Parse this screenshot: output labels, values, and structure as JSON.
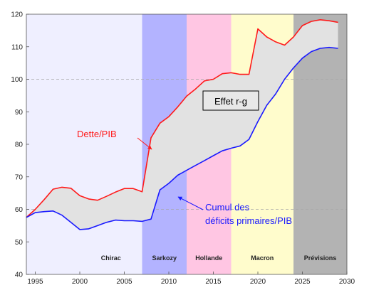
{
  "chart_data": {
    "type": "line",
    "xlim": [
      1994,
      2030
    ],
    "ylim": [
      40,
      120
    ],
    "xticks": [
      1995,
      2000,
      2005,
      2010,
      2015,
      2020,
      2025,
      2030
    ],
    "yticks": [
      40,
      50,
      60,
      70,
      80,
      90,
      100,
      110,
      120
    ],
    "reference_lines": [
      60,
      100
    ],
    "periods": [
      {
        "label": "Chirac",
        "start": 1994,
        "end": 2007,
        "color": "#efefff"
      },
      {
        "label": "Sarkozy",
        "start": 2007,
        "end": 2012,
        "color": "#b3b3ff"
      },
      {
        "label": "Hollande",
        "start": 2012,
        "end": 2017,
        "color": "#ffc6e3"
      },
      {
        "label": "Macron",
        "start": 2017,
        "end": 2024,
        "color": "#fffccc"
      },
      {
        "label": "Prévisions",
        "start": 2024,
        "end": 2030,
        "color": "#b3b3b3"
      }
    ],
    "series": [
      {
        "name": "Dette/PIB",
        "color": "#ff1a1a",
        "x": [
          1994,
          1995,
          1996,
          1997,
          1998,
          1999,
          2000,
          2001,
          2002,
          2003,
          2004,
          2005,
          2006,
          2007,
          2008,
          2009,
          2010,
          2011,
          2012,
          2013,
          2014,
          2015,
          2016,
          2017,
          2018,
          2019,
          2020,
          2021,
          2022,
          2023,
          2024,
          2025,
          2026,
          2027,
          2028,
          2029
        ],
        "values": [
          57.5,
          60.0,
          63.0,
          66.2,
          66.8,
          66.5,
          64.2,
          63.2,
          62.8,
          64.0,
          65.3,
          66.4,
          66.4,
          65.4,
          82.0,
          86.5,
          88.5,
          91.5,
          94.8,
          97.0,
          99.5,
          100.0,
          101.7,
          102.0,
          101.5,
          101.5,
          115.5,
          113.0,
          111.5,
          110.5,
          113.0,
          116.5,
          117.8,
          118.3,
          118.0,
          117.5
        ]
      },
      {
        "name": "Cumul des déficits primaires/PIB",
        "color": "#1a1aff",
        "x": [
          1994,
          1995,
          1996,
          1997,
          1998,
          1999,
          2000,
          2001,
          2002,
          2003,
          2004,
          2005,
          2006,
          2007,
          2008,
          2009,
          2010,
          2011,
          2012,
          2013,
          2014,
          2015,
          2016,
          2017,
          2018,
          2019,
          2020,
          2021,
          2022,
          2023,
          2024,
          2025,
          2026,
          2027,
          2028,
          2029
        ],
        "values": [
          57.5,
          59.0,
          59.3,
          59.5,
          58.2,
          56.0,
          53.8,
          54.0,
          55.0,
          56.0,
          56.7,
          56.5,
          56.5,
          56.3,
          57.0,
          66.0,
          68.0,
          70.5,
          72.0,
          73.5,
          75.0,
          76.5,
          78.0,
          78.8,
          79.5,
          81.5,
          87.0,
          92.0,
          95.5,
          100.0,
          103.5,
          106.5,
          108.5,
          109.5,
          109.8,
          109.5
        ]
      }
    ],
    "annotations": [
      {
        "text": "Dette/PIB",
        "color": "#ff1a1a"
      },
      {
        "text": "Effet r-g",
        "color": "#000000"
      },
      {
        "text_lines": [
          "Cumul des",
          "déficits primaires/PIB"
        ],
        "color": "#1a1aff"
      }
    ]
  }
}
